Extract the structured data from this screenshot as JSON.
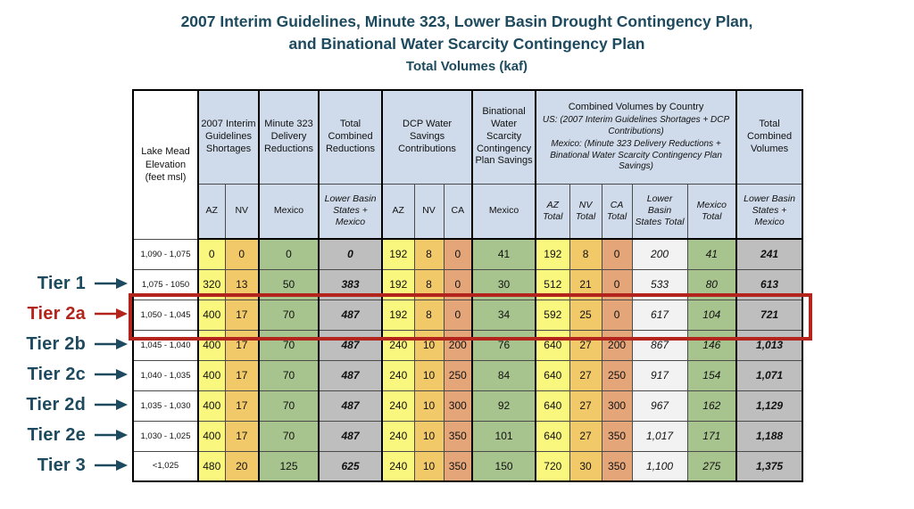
{
  "slide": {
    "title_line1": "2007 Interim Guidelines, Minute 323, Lower Basin Drought Contingency Plan,",
    "title_line2": "and Binational Water Scarcity Contingency Plan",
    "subtitle": "Total Volumes (kaf)"
  },
  "colors": {
    "title_navy": "#1d4a5e",
    "highlight_red": "#b3251c",
    "header_blue": "#cfdbea",
    "az_yellow": "#faf77e",
    "nv_amber": "#f2c969",
    "ca_salmon": "#e4a679",
    "mexico_green": "#a8c48e",
    "total_gray": "#bebebe",
    "lbs_total_lightgray": "#f2f2f2"
  },
  "tiers": [
    {
      "label": "Tier 1",
      "row": 2,
      "highlighted": false
    },
    {
      "label": "Tier 2a",
      "row": 3,
      "highlighted": true
    },
    {
      "label": "Tier 2b",
      "row": 4,
      "highlighted": false
    },
    {
      "label": "Tier 2c",
      "row": 5,
      "highlighted": false
    },
    {
      "label": "Tier 2d",
      "row": 6,
      "highlighted": false
    },
    {
      "label": "Tier 2e",
      "row": 7,
      "highlighted": false
    },
    {
      "label": "Tier 3",
      "row": 8,
      "highlighted": false
    }
  ],
  "highlight": {
    "tier": "Tier 2a",
    "row_label": "1,050 - 1,045"
  },
  "chart_data": {
    "type": "table",
    "title": "2007 Interim Guidelines, Minute 323, Lower Basin Drought Contingency Plan, and Binational Water Scarcity Contingency Plan — Total Volumes (kaf)",
    "row_label_column": "Lake Mead Elevation (feet msl)",
    "column_groups": [
      {
        "label": "2007 Interim Guidelines Shortages",
        "colspan": 2
      },
      {
        "label": "Minute 323 Delivery Reductions",
        "colspan": 1
      },
      {
        "label": "Total Combined Reductions",
        "colspan": 1
      },
      {
        "label": "DCP Water Savings Contributions",
        "colspan": 3
      },
      {
        "label": "Binational Water Scarcity Contingency Plan Savings",
        "colspan": 1
      },
      {
        "label": "Combined Volumes by Country",
        "colspan": 5,
        "subtitle_lines": [
          "US: (2007 Interim Guidelines Shortages + DCP Contributions)",
          "Mexico: (Minute 323 Delivery Reductions + Binational Water Scarcity Contingency Plan Savings)"
        ]
      },
      {
        "label": "Total Combined Volumes",
        "colspan": 1
      }
    ],
    "columns": [
      "AZ",
      "NV",
      "Mexico",
      "Lower Basin States + Mexico",
      "AZ",
      "NV",
      "CA",
      "Mexico",
      "AZ Total",
      "NV Total",
      "CA Total",
      "Lower Basin States Total",
      "Mexico Total",
      "Lower Basin States + Mexico"
    ],
    "rows": [
      {
        "elevation": "1,090 - 1,075",
        "values": [
          "0",
          "0",
          "0",
          "0",
          "192",
          "8",
          "0",
          "41",
          "192",
          "8",
          "0",
          "200",
          "41",
          "241"
        ]
      },
      {
        "elevation": "1,075 - 1050",
        "values": [
          "320",
          "13",
          "50",
          "383",
          "192",
          "8",
          "0",
          "30",
          "512",
          "21",
          "0",
          "533",
          "80",
          "613"
        ]
      },
      {
        "elevation": "1,050 - 1,045",
        "values": [
          "400",
          "17",
          "70",
          "487",
          "192",
          "8",
          "0",
          "34",
          "592",
          "25",
          "0",
          "617",
          "104",
          "721"
        ]
      },
      {
        "elevation": "1,045 - 1,040",
        "values": [
          "400",
          "17",
          "70",
          "487",
          "240",
          "10",
          "200",
          "76",
          "640",
          "27",
          "200",
          "867",
          "146",
          "1,013"
        ]
      },
      {
        "elevation": "1,040 - 1,035",
        "values": [
          "400",
          "17",
          "70",
          "487",
          "240",
          "10",
          "250",
          "84",
          "640",
          "27",
          "250",
          "917",
          "154",
          "1,071"
        ]
      },
      {
        "elevation": "1,035 - 1,030",
        "values": [
          "400",
          "17",
          "70",
          "487",
          "240",
          "10",
          "300",
          "92",
          "640",
          "27",
          "300",
          "967",
          "162",
          "1,129"
        ]
      },
      {
        "elevation": "1,030 - 1,025",
        "values": [
          "400",
          "17",
          "70",
          "487",
          "240",
          "10",
          "350",
          "101",
          "640",
          "27",
          "350",
          "1,017",
          "171",
          "1,188"
        ]
      },
      {
        "elevation": "<1,025",
        "values": [
          "480",
          "20",
          "125",
          "625",
          "240",
          "10",
          "350",
          "150",
          "720",
          "30",
          "350",
          "1,100",
          "275",
          "1,375"
        ]
      }
    ]
  }
}
